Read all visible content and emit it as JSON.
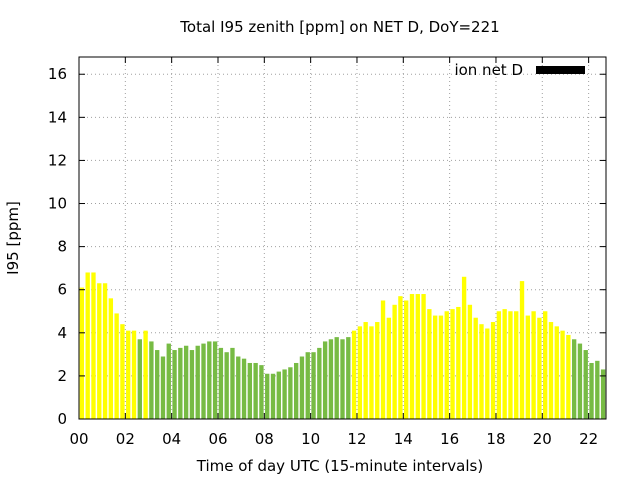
{
  "chart_data": {
    "type": "bar",
    "title": "Total I95 zenith [ppm] on NET D, DoY=221",
    "xlabel": "Time of day UTC (15-minute intervals)",
    "ylabel": "I95 [ppm]",
    "xlim": [
      0,
      22.75
    ],
    "ylim": [
      0,
      16.8
    ],
    "xtick_labels": [
      "00",
      "02",
      "04",
      "06",
      "08",
      "10",
      "12",
      "14",
      "16",
      "18",
      "20",
      "22"
    ],
    "ytick_labels": [
      "0",
      "2",
      "4",
      "6",
      "8",
      "10",
      "12",
      "14",
      "16"
    ],
    "grid": true,
    "legend": {
      "label": "ion net D",
      "position": "top-right",
      "color": "#000000"
    },
    "colors": {
      "yellow": "#ffff00",
      "green": "#77bb44"
    },
    "series": [
      {
        "x": [
          0.0,
          0.25,
          0.5,
          0.75,
          1.0,
          1.25,
          1.5,
          1.75,
          2.0,
          2.25,
          2.5,
          2.75,
          3.0,
          3.25,
          3.5,
          3.75,
          4.0,
          4.25,
          4.5,
          4.75,
          5.0,
          5.25,
          5.5,
          5.75,
          6.0,
          6.25,
          6.5,
          6.75,
          7.0,
          7.25,
          7.5,
          7.75,
          8.0,
          8.25,
          8.5,
          8.75,
          9.0,
          9.25,
          9.5,
          9.75,
          10.0,
          10.25,
          10.5,
          10.75,
          11.0,
          11.25,
          11.5,
          11.75,
          12.0,
          12.25,
          12.5,
          12.75,
          13.0,
          13.25,
          13.5,
          13.75,
          14.0,
          14.25,
          14.5,
          14.75,
          15.0,
          15.25,
          15.5,
          15.75,
          16.0,
          16.25,
          16.5,
          16.75,
          17.0,
          17.25,
          17.5,
          17.75,
          18.0,
          18.25,
          18.5,
          18.75,
          19.0,
          19.25,
          19.5,
          19.75,
          20.0,
          20.25,
          20.5,
          20.75,
          21.0,
          21.25,
          21.5,
          21.75,
          22.0,
          22.25,
          22.5,
          22.75
        ],
        "values": [
          6.1,
          6.8,
          6.8,
          6.3,
          6.3,
          5.6,
          4.9,
          4.4,
          4.1,
          4.1,
          3.7,
          4.1,
          3.6,
          3.2,
          2.9,
          3.5,
          3.2,
          3.3,
          3.4,
          3.2,
          3.4,
          3.5,
          3.6,
          3.6,
          3.3,
          3.1,
          3.3,
          2.9,
          2.8,
          2.6,
          2.6,
          2.5,
          2.1,
          2.1,
          2.2,
          2.3,
          2.4,
          2.6,
          2.9,
          3.1,
          3.1,
          3.3,
          3.6,
          3.7,
          3.8,
          3.7,
          3.8,
          4.1,
          4.3,
          4.5,
          4.3,
          4.5,
          5.5,
          4.7,
          5.3,
          5.7,
          5.5,
          5.8,
          5.8,
          5.8,
          5.1,
          4.8,
          4.8,
          5.0,
          5.1,
          5.2,
          6.6,
          5.3,
          4.7,
          4.4,
          4.2,
          4.5,
          5.0,
          5.1,
          5.0,
          5.0,
          6.4,
          4.8,
          5.0,
          4.7,
          5.0,
          4.5,
          4.3,
          4.1,
          3.9,
          3.7,
          3.5,
          3.2,
          2.6,
          2.7,
          2.3,
          2.2
        ],
        "colors": [
          "yellow",
          "yellow",
          "yellow",
          "yellow",
          "yellow",
          "yellow",
          "yellow",
          "yellow",
          "yellow",
          "yellow",
          "green",
          "yellow",
          "green",
          "green",
          "green",
          "green",
          "green",
          "green",
          "green",
          "green",
          "green",
          "green",
          "green",
          "green",
          "green",
          "green",
          "green",
          "green",
          "green",
          "green",
          "green",
          "green",
          "green",
          "green",
          "green",
          "green",
          "green",
          "green",
          "green",
          "green",
          "green",
          "green",
          "green",
          "green",
          "green",
          "green",
          "green",
          "yellow",
          "yellow",
          "yellow",
          "yellow",
          "yellow",
          "yellow",
          "yellow",
          "yellow",
          "yellow",
          "yellow",
          "yellow",
          "yellow",
          "yellow",
          "yellow",
          "yellow",
          "yellow",
          "yellow",
          "yellow",
          "yellow",
          "yellow",
          "yellow",
          "yellow",
          "yellow",
          "yellow",
          "yellow",
          "yellow",
          "yellow",
          "yellow",
          "yellow",
          "yellow",
          "yellow",
          "yellow",
          "yellow",
          "yellow",
          "yellow",
          "yellow",
          "yellow",
          "yellow",
          "green",
          "green",
          "green",
          "green",
          "green",
          "green",
          "green"
        ]
      }
    ]
  }
}
